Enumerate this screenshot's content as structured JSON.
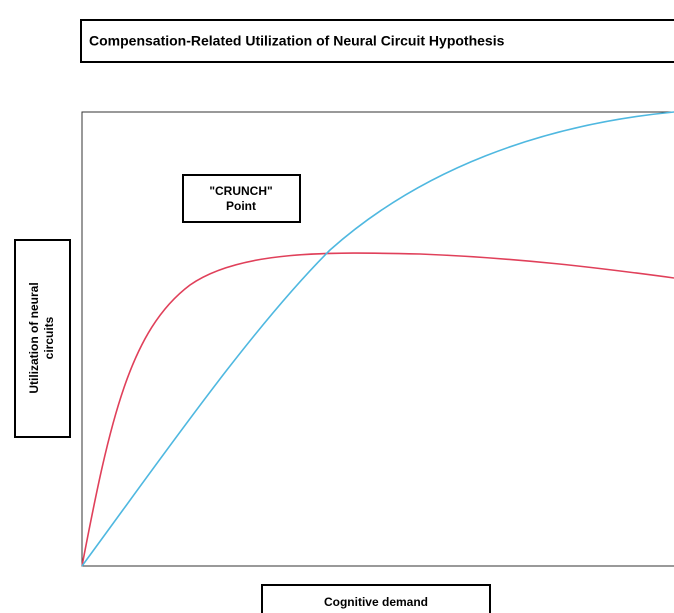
{
  "title": "Compensation-Related Utilization of Neural Circuit Hypothesis",
  "crunch_label": [
    "\"CRUNCH\"",
    "Point"
  ],
  "y_label": [
    "Utilization of neural",
    "circuits"
  ],
  "x_label": "Cognitive demand"
}
